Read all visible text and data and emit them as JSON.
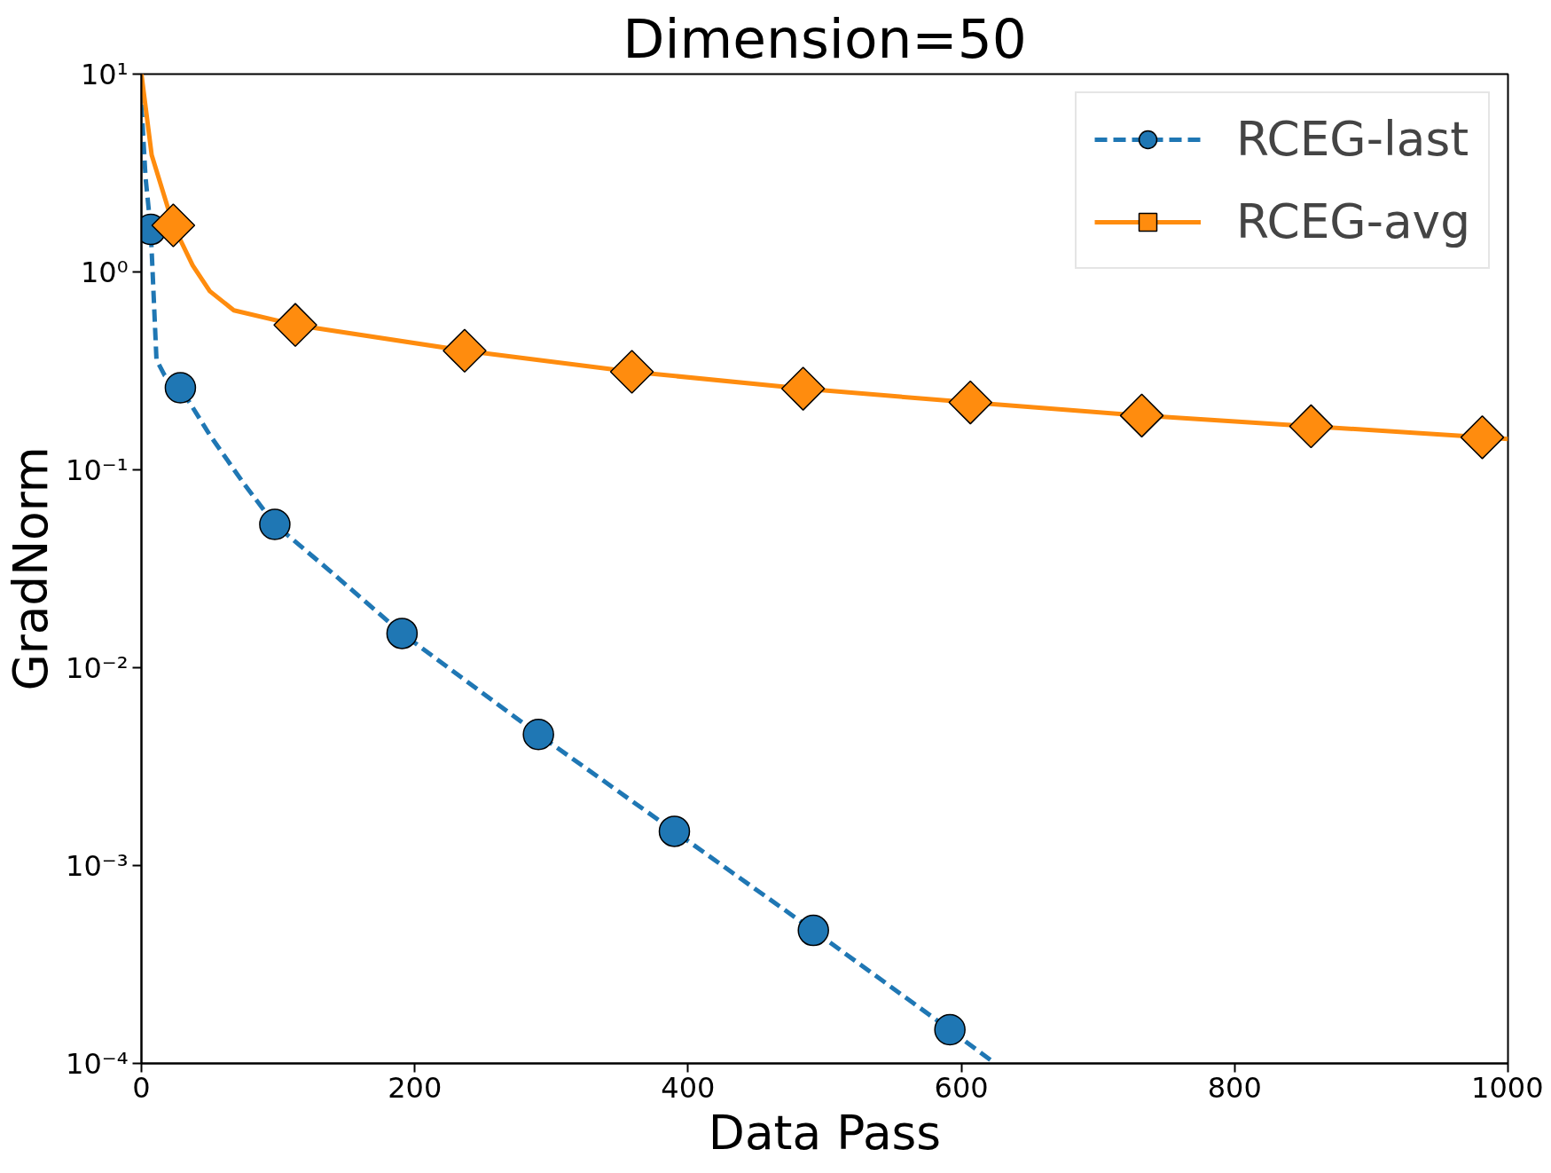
{
  "chart_data": {
    "type": "line",
    "title": "Dimension=50",
    "xlabel": "Data Pass",
    "ylabel": "GradNorm",
    "log": "y",
    "grid": false,
    "legend": "top right",
    "xlim": [
      0,
      1000
    ],
    "xticks": [
      0,
      200,
      400,
      600,
      800,
      1000
    ],
    "ylim": [
      0.0001,
      10
    ],
    "yticks": [
      {
        "value": 0.0001,
        "label": "10⁻⁴"
      },
      {
        "value": 0.001,
        "label": "10⁻³"
      },
      {
        "value": 0.01,
        "label": "10⁻²"
      },
      {
        "value": 0.1,
        "label": "10⁻¹"
      },
      {
        "value": 1,
        "label": "10⁰"
      },
      {
        "value": 10,
        "label": "10¹"
      }
    ],
    "series": [
      {
        "name": "RCEG-last",
        "line_style": "dashed",
        "marker": "none",
        "color": "#1f77b4",
        "x": [
          0,
          3,
          6.8,
          11,
          17,
          28.5,
          50,
          75,
          97.6,
          140,
          190.7,
          290.5,
          390,
          491.7,
          591.6,
          624.6
        ],
        "values": [
          7,
          3,
          1.64,
          0.36,
          0.3,
          0.26,
          0.15,
          0.085,
          0.053,
          0.03,
          0.0149,
          0.0046,
          0.00149,
          0.00047,
          0.000148,
          0.0001
        ]
      },
      {
        "type": "scatter",
        "marker": "circle",
        "color": "#1f77b4",
        "x": [
          6.8,
          28.5,
          97.6,
          190.7,
          290.5,
          390,
          491.7,
          591.6
        ],
        "values": [
          1.64,
          0.26,
          0.053,
          0.0149,
          0.0046,
          0.00149,
          0.00047,
          0.000148
        ]
      },
      {
        "name": "RCEG-avg",
        "line_style": "solid",
        "marker": "none",
        "color": "#ff8c0e",
        "x": [
          0,
          7.5,
          23.3,
          37.5,
          50,
          67.6,
          112.6,
          236.5,
          358.9,
          484.2,
          606.6,
          732,
          855.9,
          981.2,
          1000
        ],
        "values": [
          10,
          3.9,
          1.72,
          1.08,
          0.8,
          0.64,
          0.54,
          0.4,
          0.313,
          0.257,
          0.219,
          0.188,
          0.166,
          0.146,
          0.143
        ]
      },
      {
        "type": "scatter",
        "marker": "diamond",
        "color": "#ff8c0e",
        "x": [
          23.3,
          112.6,
          236.5,
          358.9,
          484.2,
          606.6,
          732,
          855.9,
          981.2
        ],
        "values": [
          1.72,
          0.54,
          0.4,
          0.313,
          0.257,
          0.219,
          0.188,
          0.166,
          0.146
        ]
      }
    ]
  }
}
